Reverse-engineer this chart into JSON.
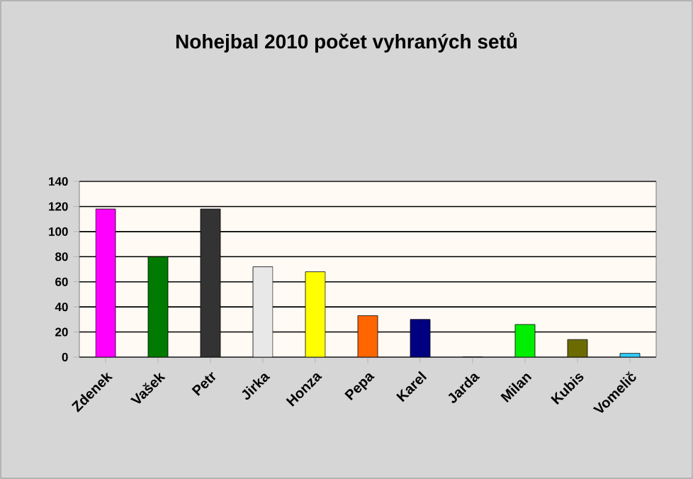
{
  "chart_data": {
    "type": "bar",
    "title": "Nohejbal 2010 počet vyhraných setů",
    "categories": [
      "Zdenek",
      "Vašek",
      "Petr",
      "Jirka",
      "Honza",
      "Pepa",
      "Karel",
      "Jarda",
      "Milan",
      "Kubis",
      "Vomelič"
    ],
    "values": [
      118,
      80,
      118,
      72,
      68,
      33,
      30,
      0,
      26,
      14,
      3
    ],
    "colors": [
      "#ff00ff",
      "#007a00",
      "#333333",
      "#e8e8e8",
      "#ffff00",
      "#ff6600",
      "#000080",
      "#808080",
      "#00ee00",
      "#6b6b00",
      "#33ccff"
    ],
    "ylim": [
      0,
      140
    ],
    "yticks": [
      0,
      20,
      40,
      60,
      80,
      100,
      120,
      140
    ],
    "grid": "y"
  }
}
